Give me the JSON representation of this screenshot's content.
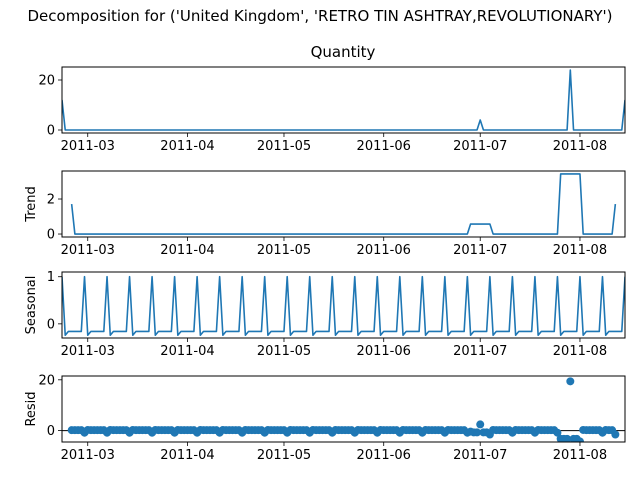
{
  "figure": {
    "suptitle": "Decomposition for ('United Kingdom', 'RETRO TIN ASHTRAY,REVOLUTIONARY')"
  },
  "colors": {
    "series": "#1f77b4",
    "axes": "#000000",
    "background": "#ffffff"
  },
  "chart_data": [
    {
      "type": "line",
      "panel": "observed",
      "title": "Quantity",
      "ylabel": "",
      "x_start": "2011-02-21",
      "x_end": "2011-08-15",
      "xlim": [
        "2011-02-21",
        "2011-08-15"
      ],
      "ylim": [
        -1.2,
        25.2
      ],
      "yticks": [
        0,
        20
      ],
      "xticks": [
        "2011-03",
        "2011-04",
        "2011-05",
        "2011-06",
        "2011-07",
        "2011-08"
      ],
      "grid": false,
      "series": [
        {
          "points": [
            {
              "x": "2011-02-21",
              "y": 12
            },
            {
              "x": "2011-02-22",
              "y": 0
            },
            {
              "x": "2011-06-30",
              "y": 0
            },
            {
              "x": "2011-07-01",
              "y": 4
            },
            {
              "x": "2011-07-02",
              "y": 0
            },
            {
              "x": "2011-07-28",
              "y": 0
            },
            {
              "x": "2011-07-29",
              "y": 24
            },
            {
              "x": "2011-07-30",
              "y": 0
            },
            {
              "x": "2011-08-14",
              "y": 0
            },
            {
              "x": "2011-08-15",
              "y": 12
            }
          ]
        }
      ]
    },
    {
      "type": "line",
      "panel": "trend",
      "title": "",
      "ylabel": "Trend",
      "xlim": [
        "2011-02-21",
        "2011-08-15"
      ],
      "ylim": [
        -0.17,
        3.6
      ],
      "yticks": [
        0,
        2
      ],
      "xticks": [
        "2011-03",
        "2011-04",
        "2011-05",
        "2011-06",
        "2011-07",
        "2011-08"
      ],
      "grid": false,
      "series": [
        {
          "points": [
            {
              "x": "2011-02-24",
              "y": 1.71
            },
            {
              "x": "2011-02-25",
              "y": 0
            },
            {
              "x": "2011-06-27",
              "y": 0
            },
            {
              "x": "2011-06-28",
              "y": 0.57
            },
            {
              "x": "2011-07-04",
              "y": 0.57
            },
            {
              "x": "2011-07-05",
              "y": 0
            },
            {
              "x": "2011-07-25",
              "y": 0
            },
            {
              "x": "2011-07-26",
              "y": 3.43
            },
            {
              "x": "2011-08-01",
              "y": 3.43
            },
            {
              "x": "2011-08-02",
              "y": 0
            },
            {
              "x": "2011-08-11",
              "y": 0
            },
            {
              "x": "2011-08-12",
              "y": 1.71
            }
          ]
        }
      ]
    },
    {
      "type": "line",
      "panel": "seasonal",
      "title": "",
      "ylabel": "Seasonal",
      "xlim": [
        "2011-02-21",
        "2011-08-15"
      ],
      "ylim": [
        -0.3,
        1.1
      ],
      "yticks": [
        0,
        1
      ],
      "xticks": [
        "2011-03",
        "2011-04",
        "2011-05",
        "2011-06",
        "2011-07",
        "2011-08"
      ],
      "grid": false,
      "period_days": 7,
      "weekly_pattern": [
        1.0,
        -0.24,
        -0.16,
        -0.16,
        -0.16,
        -0.16,
        -0.16
      ],
      "series": [
        {
          "x_start": "2011-02-21",
          "x_end": "2011-08-15",
          "pattern": "weekly_pattern"
        }
      ]
    },
    {
      "type": "scatter",
      "panel": "resid",
      "title": "",
      "ylabel": "Resid",
      "xlim": [
        "2011-02-21",
        "2011-08-15"
      ],
      "ylim": [
        -4.5,
        21.5
      ],
      "yticks": [
        0,
        20
      ],
      "xticks": [
        "2011-03",
        "2011-04",
        "2011-05",
        "2011-06",
        "2011-07",
        "2011-08"
      ],
      "grid": false,
      "zero_line": true,
      "series": [
        {
          "x_start": "2011-02-24",
          "x_end": "2011-08-12",
          "baseline_pattern": [
            -0.85,
            0.24,
            0.16,
            0.16,
            0.16,
            0.16,
            0.16
          ],
          "overrides": [
            {
              "x": "2011-06-28",
              "y": -0.41
            },
            {
              "x": "2011-06-29",
              "y": -0.73
            },
            {
              "x": "2011-06-30",
              "y": -0.73
            },
            {
              "x": "2011-07-01",
              "y": 2.43
            },
            {
              "x": "2011-07-02",
              "y": -0.73
            },
            {
              "x": "2011-07-03",
              "y": -0.73
            },
            {
              "x": "2011-07-04",
              "y": -1.57
            },
            {
              "x": "2011-07-26",
              "y": -3.27
            },
            {
              "x": "2011-07-27",
              "y": -3.27
            },
            {
              "x": "2011-07-28",
              "y": -3.27
            },
            {
              "x": "2011-07-29",
              "y": 19.4
            },
            {
              "x": "2011-07-30",
              "y": -3.27
            },
            {
              "x": "2011-07-31",
              "y": -3.27
            },
            {
              "x": "2011-08-01",
              "y": -4.28
            },
            {
              "x": "2011-08-12",
              "y": -1.55
            }
          ]
        }
      ]
    }
  ]
}
